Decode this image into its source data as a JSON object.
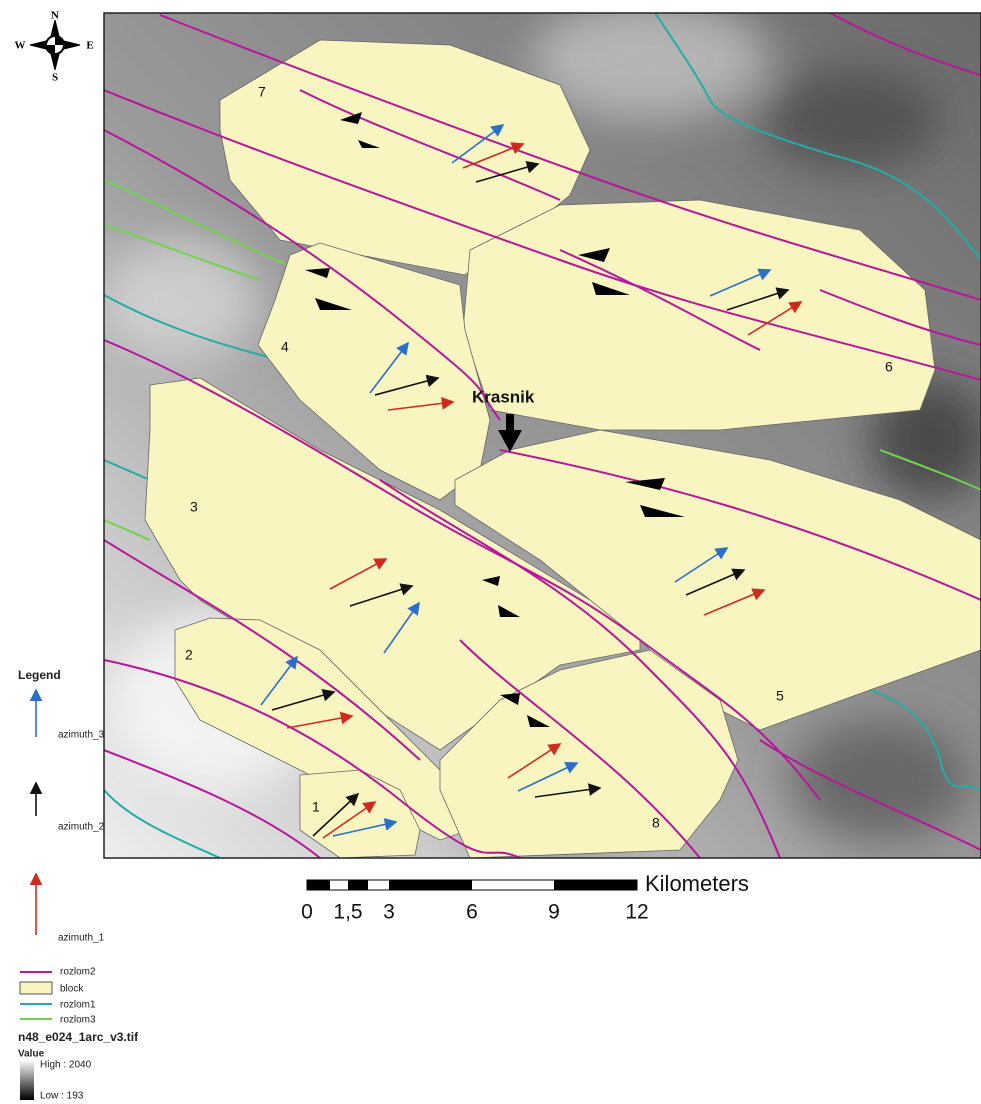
{
  "compass": {
    "north": "N",
    "south": "S",
    "east": "E",
    "west": "W"
  },
  "map": {
    "place_label": "Krasnik",
    "blocks": [
      "1",
      "2",
      "3",
      "4",
      "5",
      "6",
      "7",
      "8"
    ]
  },
  "scale_bar": {
    "labels": [
      "0",
      "1,5",
      "3",
      "6",
      "9",
      "12"
    ],
    "unit": "Kilometers"
  },
  "legend": {
    "title": "Legend",
    "arrows": [
      "azimuth_3",
      "azimuth_2",
      "azimuth_1"
    ],
    "layers": [
      "rozlom2",
      "block",
      "rozlom1",
      "rozlom3"
    ],
    "raster": "n48_e024_1arc_v3.tif",
    "value_title": "Value",
    "high": "High : 2040",
    "low": "Low : 193"
  }
}
